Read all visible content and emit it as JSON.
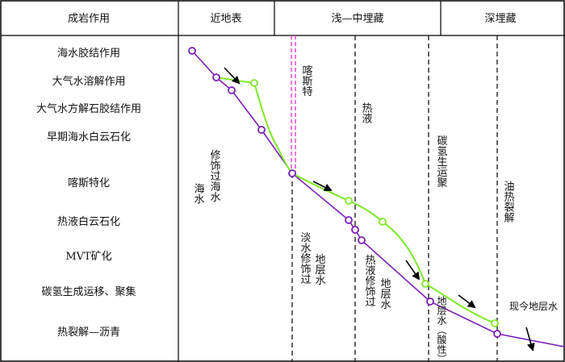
{
  "header": {
    "first_col": "成岩作用",
    "stage1": "近地表",
    "stage2": "浅—中埋藏",
    "stage3": "深埋藏"
  },
  "processes": [
    "海水胶结作用",
    "大气水溶解作用",
    "大气水方解石胶结作用",
    "早期海水白云石化",
    "喀斯特化",
    "热液白云石化",
    "MVT矿化",
    "碳氢生成运移、聚集",
    "热裂解—沥青"
  ],
  "zone_labels": {
    "karst": "喀斯特",
    "hydrothermal": "热液",
    "hc_migration": "碳氢生运聚",
    "oil_cracking": "油热裂解"
  },
  "fluid_labels": {
    "seawater": "海水",
    "modified_seawater": "修饰过海水",
    "freshwater_modified": "淡水修饰过",
    "formation_water_1": "地层水",
    "hydrothermal_modified": "热液修饰过",
    "formation_water_2": "地层水",
    "formation_water_acidic": "地层水（酸性）",
    "present_formation_water": "现今地层水"
  },
  "colors": {
    "purple_line": "#7a1fb8",
    "green_line": "#7ee829",
    "karst_marker": "#e040c8"
  }
}
